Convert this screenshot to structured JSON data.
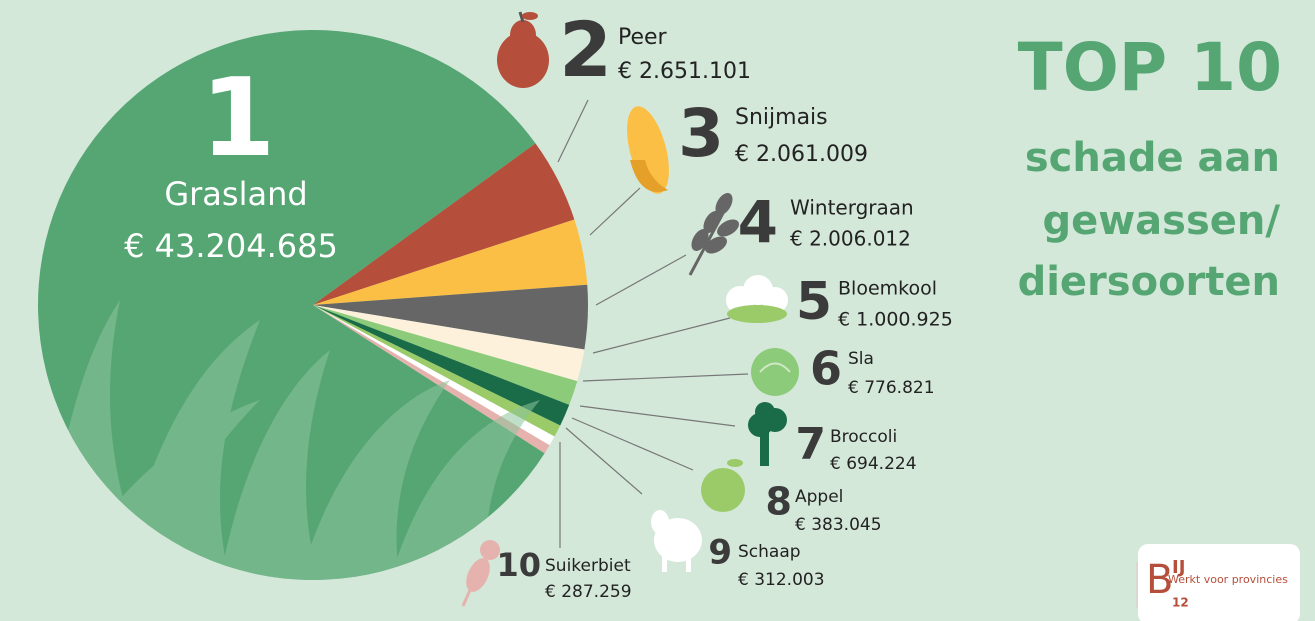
{
  "chart_data": {
    "type": "pie",
    "title": "TOP 10",
    "subtitle": [
      "schade aan",
      "gewassen/",
      "diersoorten"
    ],
    "ranks": [
      1,
      2,
      3,
      4,
      5,
      6,
      7,
      8,
      9,
      10
    ],
    "categories": [
      "Grasland",
      "Peer",
      "Snijmais",
      "Wintergraan",
      "Bloemkool",
      "Sla",
      "Broccoli",
      "Appel",
      "Schaap",
      "Suikerbiet"
    ],
    "values": [
      43204685,
      2651101,
      2061009,
      2006012,
      1000925,
      776821,
      694224,
      383045,
      312003,
      287259
    ],
    "value_labels": [
      "€ 43.204.685",
      "€ 2.651.101",
      "€ 2.061.009",
      "€ 2.006.012",
      "€ 1.000.925",
      "€ 776.821",
      "€ 694.224",
      "€ 383.045",
      "€ 312.003",
      "€ 287.259"
    ],
    "colors": [
      "#55a673",
      "#b54e3a",
      "#fbbf45",
      "#666666",
      "#fdf1dc",
      "#8ccb7a",
      "#1a6b47",
      "#9acb68",
      "#ffffff",
      "#e6b2ae"
    ],
    "logo": {
      "mark": "B",
      "sup": "IJ",
      "sub": "12",
      "tagline": "Werkt voor provincies"
    }
  }
}
